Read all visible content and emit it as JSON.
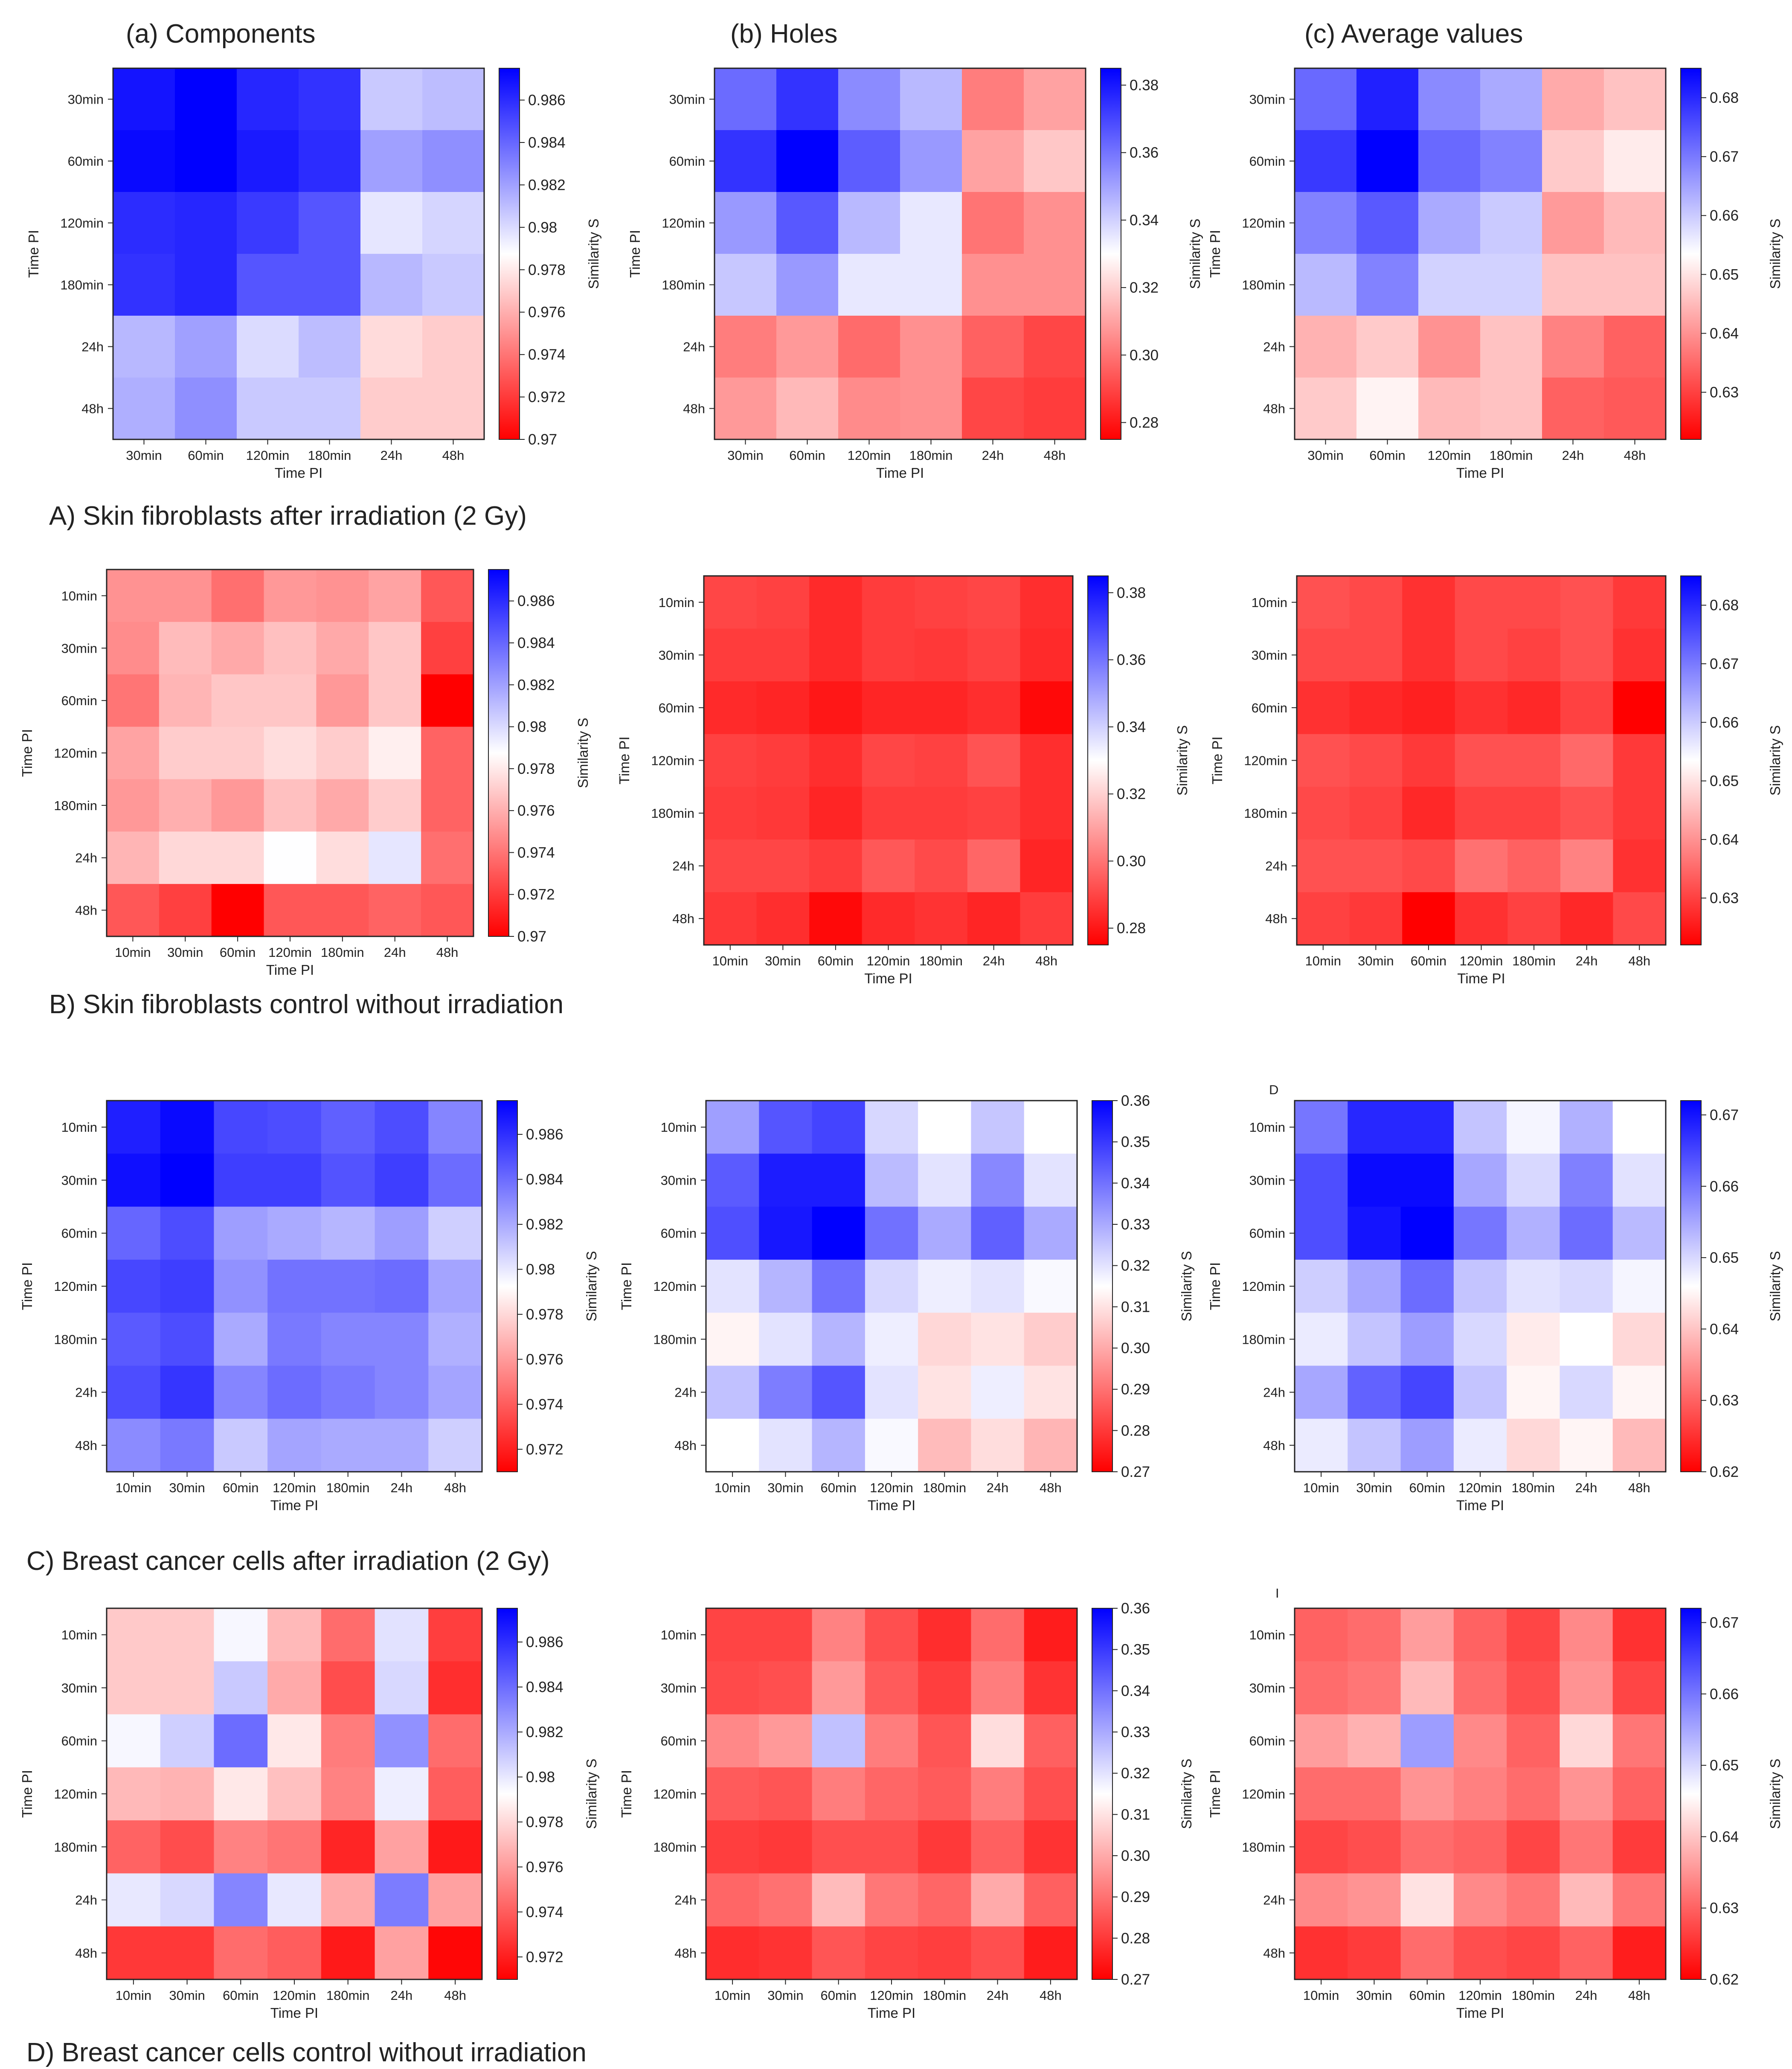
{
  "figure": {
    "column_titles": [
      "(a) Components",
      "(b) Holes",
      "(c) Average values"
    ],
    "row_captions": [
      "A) Skin fibroblasts after irradiation (2 Gy)",
      "B) Skin fibroblasts control without irradiation",
      "C) Breast cancer cells after irradiation (2 Gy)",
      "D) Breast cancer cells control without irradiation"
    ],
    "xlabel": "Time PI",
    "ylabel": "Time PI",
    "colorbar_label": "Similarity S",
    "colors": {
      "low": "#ff0000",
      "mid": "#ffffff",
      "high": "#0000ff"
    },
    "stray_marks": [
      "D",
      "I"
    ]
  },
  "chart_data": [
    {
      "type": "heatmap",
      "row": "A",
      "metric": "Components",
      "x": [
        "30min",
        "60min",
        "120min",
        "180min",
        "24h",
        "48h"
      ],
      "y": [
        "30min",
        "60min",
        "120min",
        "180min",
        "24h",
        "48h"
      ],
      "vmin": 0.97,
      "vmax": 0.9875,
      "cbar_ticks": [
        0.986,
        0.984,
        0.982,
        0.98,
        0.978,
        0.976,
        0.974,
        0.972,
        0.97
      ],
      "values": [
        [
          0.9868,
          0.9875,
          0.9862,
          0.9858,
          0.9806,
          0.981
        ],
        [
          0.9872,
          0.9875,
          0.9866,
          0.986,
          0.982,
          0.9826
        ],
        [
          0.986,
          0.9862,
          0.9855,
          0.9846,
          0.9796,
          0.9802
        ],
        [
          0.9858,
          0.9862,
          0.9846,
          0.9846,
          0.9812,
          0.9806
        ],
        [
          0.9812,
          0.982,
          0.98,
          0.981,
          0.9775,
          0.977
        ],
        [
          0.9815,
          0.9826,
          0.9806,
          0.9806,
          0.977,
          0.977
        ]
      ]
    },
    {
      "type": "heatmap",
      "row": "A",
      "metric": "Holes",
      "x": [
        "30min",
        "60min",
        "120min",
        "180min",
        "24h",
        "48h"
      ],
      "y": [
        "30min",
        "60min",
        "120min",
        "180min",
        "24h",
        "48h"
      ],
      "vmin": 0.275,
      "vmax": 0.385,
      "cbar_ticks": [
        0.38,
        0.36,
        0.34,
        0.32,
        0.3,
        0.28
      ],
      "values": [
        [
          0.362,
          0.374,
          0.355,
          0.345,
          0.302,
          0.31
        ],
        [
          0.374,
          0.385,
          0.365,
          0.352,
          0.31,
          0.318
        ],
        [
          0.352,
          0.366,
          0.345,
          0.335,
          0.3,
          0.306
        ],
        [
          0.342,
          0.352,
          0.335,
          0.335,
          0.306,
          0.306
        ],
        [
          0.302,
          0.308,
          0.298,
          0.306,
          0.296,
          0.29
        ],
        [
          0.308,
          0.315,
          0.305,
          0.306,
          0.29,
          0.288
        ]
      ]
    },
    {
      "type": "heatmap",
      "row": "A",
      "metric": "Average values",
      "x": [
        "30min",
        "60min",
        "120min",
        "180min",
        "24h",
        "48h"
      ],
      "y": [
        "30min",
        "60min",
        "120min",
        "180min",
        "24h",
        "48h"
      ],
      "vmin": 0.622,
      "vmax": 0.685,
      "cbar_ticks": [
        0.68,
        0.67,
        0.66,
        0.65,
        0.64,
        0.63
      ],
      "values": [
        [
          0.672,
          0.681,
          0.668,
          0.664,
          0.643,
          0.646
        ],
        [
          0.678,
          0.685,
          0.672,
          0.669,
          0.647,
          0.651
        ],
        [
          0.669,
          0.674,
          0.664,
          0.66,
          0.641,
          0.645
        ],
        [
          0.662,
          0.669,
          0.659,
          0.659,
          0.646,
          0.646
        ],
        [
          0.644,
          0.647,
          0.64,
          0.646,
          0.638,
          0.634
        ],
        [
          0.647,
          0.652,
          0.645,
          0.646,
          0.634,
          0.633
        ]
      ]
    },
    {
      "type": "heatmap",
      "row": "B",
      "metric": "Components",
      "x": [
        "10min",
        "30min",
        "60min",
        "120min",
        "180min",
        "24h",
        "48h"
      ],
      "y": [
        "10min",
        "30min",
        "60min",
        "120min",
        "180min",
        "24h",
        "48h"
      ],
      "vmin": 0.97,
      "vmax": 0.9875,
      "cbar_ticks": [
        0.986,
        0.984,
        0.982,
        0.98,
        0.978,
        0.976,
        0.974,
        0.972,
        0.97
      ],
      "values": [
        [
          0.975,
          0.975,
          0.9738,
          0.9752,
          0.975,
          0.9756,
          0.973
        ],
        [
          0.9748,
          0.9764,
          0.9758,
          0.9766,
          0.9758,
          0.9768,
          0.9722
        ],
        [
          0.974,
          0.9762,
          0.9768,
          0.9768,
          0.9752,
          0.9768,
          0.97
        ],
        [
          0.9756,
          0.977,
          0.977,
          0.9776,
          0.977,
          0.9782,
          0.9734
        ],
        [
          0.9752,
          0.976,
          0.9752,
          0.9766,
          0.9758,
          0.977,
          0.9734
        ],
        [
          0.9762,
          0.9774,
          0.9774,
          0.9788,
          0.9776,
          0.9796,
          0.9738
        ],
        [
          0.973,
          0.9722,
          0.97,
          0.973,
          0.973,
          0.9734,
          0.973
        ]
      ]
    },
    {
      "type": "heatmap",
      "row": "B",
      "metric": "Holes",
      "x": [
        "10min",
        "30min",
        "60min",
        "120min",
        "180min",
        "24h",
        "48h"
      ],
      "y": [
        "10min",
        "30min",
        "60min",
        "120min",
        "180min",
        "24h",
        "48h"
      ],
      "vmin": 0.275,
      "vmax": 0.385,
      "cbar_ticks": [
        0.38,
        0.36,
        0.34,
        0.32,
        0.3,
        0.28
      ],
      "values": [
        [
          0.29,
          0.289,
          0.284,
          0.288,
          0.289,
          0.29,
          0.285
        ],
        [
          0.288,
          0.288,
          0.284,
          0.288,
          0.287,
          0.289,
          0.284
        ],
        [
          0.284,
          0.283,
          0.28,
          0.283,
          0.283,
          0.285,
          0.277
        ],
        [
          0.289,
          0.288,
          0.285,
          0.29,
          0.289,
          0.293,
          0.285
        ],
        [
          0.288,
          0.287,
          0.283,
          0.288,
          0.288,
          0.289,
          0.285
        ],
        [
          0.29,
          0.29,
          0.288,
          0.294,
          0.291,
          0.297,
          0.283
        ],
        [
          0.287,
          0.285,
          0.277,
          0.284,
          0.286,
          0.283,
          0.288
        ]
      ]
    },
    {
      "type": "heatmap",
      "row": "B",
      "metric": "Average values",
      "x": [
        "10min",
        "30min",
        "60min",
        "120min",
        "180min",
        "24h",
        "48h"
      ],
      "y": [
        "10min",
        "30min",
        "60min",
        "120min",
        "180min",
        "24h",
        "48h"
      ],
      "vmin": 0.622,
      "vmax": 0.685,
      "cbar_ticks": [
        0.68,
        0.67,
        0.66,
        0.65,
        0.64,
        0.63
      ],
      "values": [
        [
          0.632,
          0.631,
          0.628,
          0.631,
          0.631,
          0.632,
          0.629
        ],
        [
          0.631,
          0.631,
          0.628,
          0.631,
          0.63,
          0.632,
          0.628
        ],
        [
          0.628,
          0.627,
          0.626,
          0.628,
          0.627,
          0.63,
          0.622
        ],
        [
          0.632,
          0.631,
          0.629,
          0.632,
          0.632,
          0.635,
          0.629
        ],
        [
          0.631,
          0.63,
          0.627,
          0.63,
          0.63,
          0.632,
          0.629
        ],
        [
          0.632,
          0.632,
          0.631,
          0.636,
          0.634,
          0.638,
          0.628
        ],
        [
          0.63,
          0.629,
          0.622,
          0.628,
          0.63,
          0.627,
          0.631
        ]
      ]
    },
    {
      "type": "heatmap",
      "row": "C",
      "metric": "Components",
      "x": [
        "10min",
        "30min",
        "60min",
        "120min",
        "180min",
        "24h",
        "48h"
      ],
      "y": [
        "10min",
        "30min",
        "60min",
        "120min",
        "180min",
        "24h",
        "48h"
      ],
      "vmin": 0.971,
      "vmax": 0.9875,
      "cbar_ticks": [
        0.986,
        0.984,
        0.982,
        0.98,
        0.978,
        0.976,
        0.974,
        0.972
      ],
      "values": [
        [
          0.9865,
          0.9872,
          0.9852,
          0.985,
          0.9844,
          0.985,
          0.9832
        ],
        [
          0.987,
          0.9875,
          0.9855,
          0.9855,
          0.9848,
          0.9855,
          0.984
        ],
        [
          0.9842,
          0.985,
          0.9824,
          0.982,
          0.9816,
          0.9824,
          0.9808
        ],
        [
          0.9852,
          0.9855,
          0.9828,
          0.9838,
          0.9838,
          0.984,
          0.9822
        ],
        [
          0.9846,
          0.985,
          0.982,
          0.9836,
          0.9832,
          0.9832,
          0.9818
        ],
        [
          0.985,
          0.9858,
          0.9832,
          0.984,
          0.9836,
          0.9832,
          0.9822
        ],
        [
          0.983,
          0.9836,
          0.981,
          0.9822,
          0.982,
          0.982,
          0.9808
        ]
      ]
    },
    {
      "type": "heatmap",
      "row": "C",
      "metric": "Holes",
      "x": [
        "10min",
        "30min",
        "60min",
        "120min",
        "180min",
        "24h",
        "48h"
      ],
      "y": [
        "10min",
        "30min",
        "60min",
        "120min",
        "180min",
        "24h",
        "48h"
      ],
      "vmin": 0.27,
      "vmax": 0.36,
      "cbar_ticks": [
        0.36,
        0.35,
        0.34,
        0.33,
        0.32,
        0.31,
        0.3,
        0.29,
        0.28,
        0.27
      ],
      "values": [
        [
          0.332,
          0.345,
          0.348,
          0.322,
          0.315,
          0.325,
          0.315
        ],
        [
          0.344,
          0.355,
          0.355,
          0.327,
          0.32,
          0.336,
          0.32
        ],
        [
          0.346,
          0.356,
          0.36,
          0.34,
          0.33,
          0.343,
          0.33
        ],
        [
          0.32,
          0.328,
          0.34,
          0.322,
          0.318,
          0.32,
          0.316
        ],
        [
          0.313,
          0.32,
          0.328,
          0.318,
          0.308,
          0.31,
          0.306
        ],
        [
          0.326,
          0.338,
          0.345,
          0.32,
          0.31,
          0.318,
          0.31
        ],
        [
          0.315,
          0.32,
          0.328,
          0.316,
          0.303,
          0.309,
          0.302
        ]
      ]
    },
    {
      "type": "heatmap",
      "row": "C",
      "metric": "Average values",
      "x": [
        "10min",
        "30min",
        "60min",
        "120min",
        "180min",
        "24h",
        "48h"
      ],
      "y": [
        "10min",
        "30min",
        "60min",
        "120min",
        "180min",
        "24h",
        "48h"
      ],
      "vmin": 0.62,
      "vmax": 0.672,
      "cbar_ticks": [
        0.67,
        0.66,
        0.65,
        0.64,
        0.63,
        0.62
      ],
      "values": [
        [
          0.66,
          0.668,
          0.668,
          0.652,
          0.647,
          0.654,
          0.646
        ],
        [
          0.664,
          0.671,
          0.671,
          0.655,
          0.65,
          0.659,
          0.649
        ],
        [
          0.664,
          0.67,
          0.672,
          0.66,
          0.654,
          0.661,
          0.653
        ],
        [
          0.651,
          0.655,
          0.661,
          0.652,
          0.649,
          0.65,
          0.647
        ],
        [
          0.648,
          0.652,
          0.656,
          0.65,
          0.644,
          0.646,
          0.642
        ],
        [
          0.655,
          0.662,
          0.665,
          0.652,
          0.645,
          0.65,
          0.645
        ],
        [
          0.648,
          0.652,
          0.656,
          0.648,
          0.642,
          0.645,
          0.639
        ]
      ]
    },
    {
      "type": "heatmap",
      "row": "D",
      "metric": "Components",
      "x": [
        "10min",
        "30min",
        "60min",
        "120min",
        "180min",
        "24h",
        "48h"
      ],
      "y": [
        "10min",
        "30min",
        "60min",
        "120min",
        "180min",
        "24h",
        "48h"
      ],
      "vmin": 0.971,
      "vmax": 0.9875,
      "cbar_ticks": [
        0.986,
        0.984,
        0.982,
        0.98,
        0.978,
        0.976,
        0.974,
        0.972
      ],
      "values": [
        [
          0.9775,
          0.9775,
          0.9795,
          0.977,
          0.9745,
          0.9802,
          0.973
        ],
        [
          0.9775,
          0.9775,
          0.981,
          0.9765,
          0.9735,
          0.9805,
          0.9725
        ],
        [
          0.9795,
          0.9808,
          0.984,
          0.9785,
          0.975,
          0.9828,
          0.9745
        ],
        [
          0.977,
          0.9768,
          0.9785,
          0.9772,
          0.9752,
          0.9798,
          0.974
        ],
        [
          0.9742,
          0.9735,
          0.9752,
          0.9748,
          0.9722,
          0.9762,
          0.9718
        ],
        [
          0.98,
          0.9805,
          0.9832,
          0.98,
          0.9765,
          0.9835,
          0.9762
        ],
        [
          0.9728,
          0.9728,
          0.9745,
          0.974,
          0.9718,
          0.9762,
          0.9712
        ]
      ]
    },
    {
      "type": "heatmap",
      "row": "D",
      "metric": "Holes",
      "x": [
        "10min",
        "30min",
        "60min",
        "120min",
        "180min",
        "24h",
        "48h"
      ],
      "y": [
        "10min",
        "30min",
        "60min",
        "120min",
        "180min",
        "24h",
        "48h"
      ],
      "vmin": 0.27,
      "vmax": 0.36,
      "cbar_ticks": [
        0.36,
        0.35,
        0.34,
        0.33,
        0.32,
        0.31,
        0.3,
        0.29,
        0.28,
        0.27
      ],
      "values": [
        [
          0.282,
          0.282,
          0.293,
          0.284,
          0.278,
          0.289,
          0.275
        ],
        [
          0.283,
          0.284,
          0.297,
          0.286,
          0.281,
          0.292,
          0.279
        ],
        [
          0.294,
          0.297,
          0.326,
          0.292,
          0.285,
          0.309,
          0.287
        ],
        [
          0.286,
          0.285,
          0.292,
          0.288,
          0.286,
          0.292,
          0.284
        ],
        [
          0.281,
          0.28,
          0.284,
          0.284,
          0.28,
          0.287,
          0.279
        ],
        [
          0.288,
          0.29,
          0.303,
          0.291,
          0.288,
          0.3,
          0.287
        ],
        [
          0.278,
          0.279,
          0.285,
          0.282,
          0.281,
          0.284,
          0.275
        ]
      ]
    },
    {
      "type": "heatmap",
      "row": "D",
      "metric": "Average values",
      "x": [
        "10min",
        "30min",
        "60min",
        "120min",
        "180min",
        "24h",
        "48h"
      ],
      "y": [
        "10min",
        "30min",
        "60min",
        "120min",
        "180min",
        "24h",
        "48h"
      ],
      "vmin": 0.62,
      "vmax": 0.672,
      "cbar_ticks": [
        0.67,
        0.66,
        0.65,
        0.64,
        0.63,
        0.62
      ],
      "values": [
        [
          0.63,
          0.631,
          0.636,
          0.63,
          0.627,
          0.634,
          0.625
        ],
        [
          0.631,
          0.632,
          0.639,
          0.631,
          0.628,
          0.635,
          0.627
        ],
        [
          0.636,
          0.638,
          0.656,
          0.634,
          0.63,
          0.642,
          0.632
        ],
        [
          0.631,
          0.631,
          0.635,
          0.633,
          0.631,
          0.635,
          0.63
        ],
        [
          0.627,
          0.628,
          0.631,
          0.63,
          0.627,
          0.632,
          0.626
        ],
        [
          0.634,
          0.635,
          0.643,
          0.634,
          0.632,
          0.639,
          0.632
        ],
        [
          0.625,
          0.626,
          0.631,
          0.628,
          0.627,
          0.63,
          0.623
        ]
      ]
    }
  ]
}
